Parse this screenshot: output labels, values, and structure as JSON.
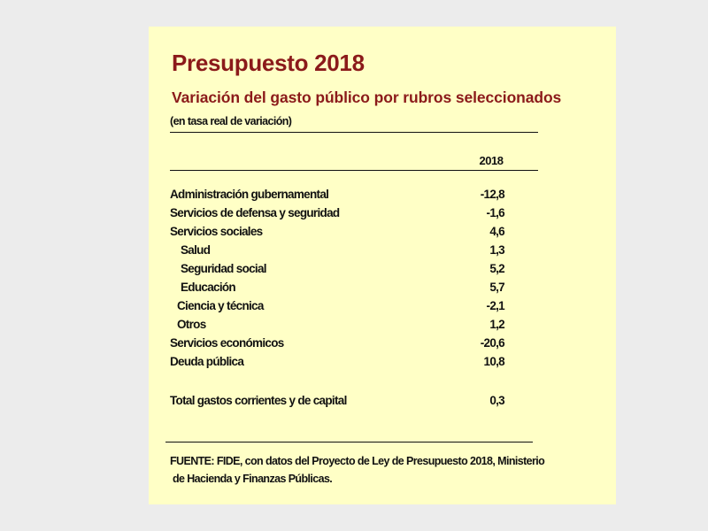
{
  "title": "Presupuesto 2018",
  "subtitle": "Variación del gasto público por rubros seleccionados",
  "unit_note": "(en tasa real de variación)",
  "column_header": "2018",
  "rows": [
    {
      "label": "Administración gubernamental",
      "value": "-12,8",
      "indent": 0
    },
    {
      "label": "Servicios de defensa y seguridad",
      "value": "-1,6",
      "indent": 0
    },
    {
      "label": "Servicios sociales",
      "value": "4,6",
      "indent": 0
    },
    {
      "label": "Salud",
      "value": "1,3",
      "indent": 2
    },
    {
      "label": "Seguridad social",
      "value": "5,2",
      "indent": 2
    },
    {
      "label": "Educación",
      "value": "5,7",
      "indent": 2
    },
    {
      "label": "Ciencia y técnica",
      "value": "-2,1",
      "indent": 1
    },
    {
      "label": "Otros",
      "value": "1,2",
      "indent": 1
    },
    {
      "label": "Servicios económicos",
      "value": "-20,6",
      "indent": 0
    },
    {
      "label": "Deuda pública",
      "value": "10,8",
      "indent": 0
    }
  ],
  "total": {
    "label": "Total gastos corrientes y de capital",
    "value": "0,3"
  },
  "source_line1": "FUENTE: FIDE, con datos del Proyecto de Ley de Presupuesto 2018, Ministerio",
  "source_line2": "de Hacienda y Finanzas Públicas."
}
